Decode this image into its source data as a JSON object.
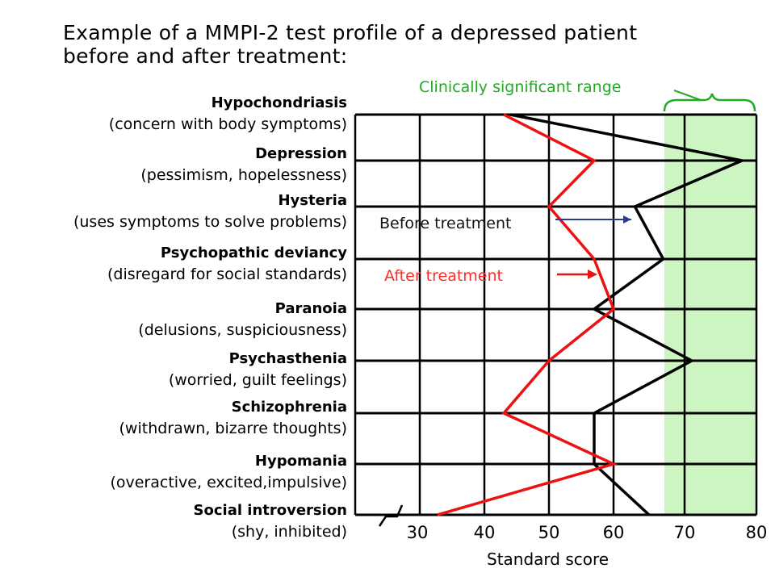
{
  "title_line1": "Example of a MMPI-2  test profile of a depressed patient",
  "title_line2": "before and after treatment:",
  "annotations": {
    "significant_range": "Clinically significant range",
    "before": "Before treatment",
    "after": "After treatment"
  },
  "colors": {
    "before": "#000000",
    "after": "#ee1111",
    "significant_fill": "#ccf5c2",
    "significant_text": "#22aa22",
    "before_arrow": "#2a3b8f"
  },
  "chart_data": {
    "type": "line",
    "orientation": "horizontal-profile",
    "xlabel": "Standard score",
    "x_ticks": [
      "30",
      "40",
      "50",
      "60",
      "70",
      "80"
    ],
    "xlim": [
      30,
      80
    ],
    "significant_range": [
      68,
      80
    ],
    "categories": [
      {
        "name": "Hypochondriasis",
        "desc": "(concern with body symptoms)"
      },
      {
        "name": "Depression",
        "desc": "(pessimism, hopelessness)"
      },
      {
        "name": "Hysteria",
        "desc": "(uses symptoms to solve problems)"
      },
      {
        "name": "Psychopathic deviancy",
        "desc": "(disregard for social standards)"
      },
      {
        "name": "Paranoia",
        "desc": "(delusions, suspiciousness)"
      },
      {
        "name": "Psychasthenia",
        "desc": "(worried, guilt feelings)"
      },
      {
        "name": "Schizophrenia",
        "desc": "(withdrawn, bizarre thoughts)"
      },
      {
        "name": "Hypomania",
        "desc": "(overactive, excited,impulsive)"
      },
      {
        "name": "Social introversion",
        "desc": "(shy, inhibited)"
      }
    ],
    "series": [
      {
        "name": "Before treatment",
        "values": [
          44,
          78,
          63,
          67,
          57,
          71,
          57,
          57,
          65
        ]
      },
      {
        "name": "After treatment",
        "values": [
          43,
          57,
          50,
          57,
          60,
          50,
          43,
          60,
          33
        ]
      }
    ]
  }
}
